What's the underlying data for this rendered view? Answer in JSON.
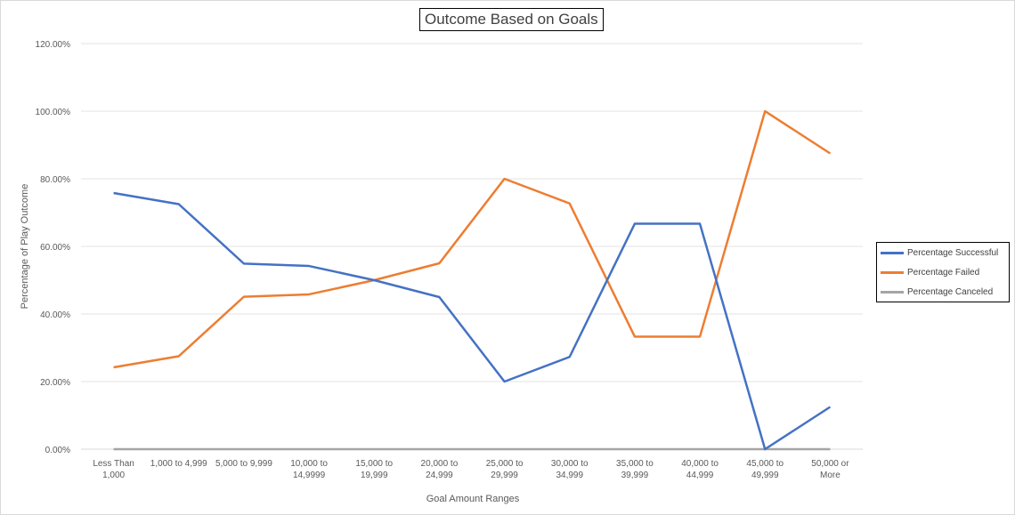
{
  "chart_data": {
    "type": "line",
    "title": "Outcome Based on Goals",
    "xlabel": "Goal Amount Ranges",
    "ylabel": "Percentage of Play Outcome",
    "ylim": [
      0,
      1.2
    ],
    "yticks": [
      "0.00%",
      "20.00%",
      "40.00%",
      "60.00%",
      "80.00%",
      "100.00%",
      "120.00%"
    ],
    "grid": true,
    "legend_position": "right",
    "categories": [
      [
        "Less Than",
        "1,000"
      ],
      [
        "1,000 to 4,999"
      ],
      [
        "5,000 to 9,999"
      ],
      [
        "10,000 to",
        "14,9999"
      ],
      [
        "15,000 to",
        "19,999"
      ],
      [
        "20,000 to",
        "24,999"
      ],
      [
        "25,000 to",
        "29,999"
      ],
      [
        "30,000 to",
        "34,999"
      ],
      [
        "35,000 to",
        "39,999"
      ],
      [
        "40,000 to",
        "44,999"
      ],
      [
        "45,000 to",
        "49,999"
      ],
      [
        "50,000 or",
        "More"
      ]
    ],
    "series": [
      {
        "name": "Percentage Successful",
        "color": "#4472c4",
        "values": [
          0.758,
          0.725,
          0.549,
          0.542,
          0.5,
          0.45,
          0.2,
          0.273,
          0.667,
          0.667,
          0.0,
          0.125
        ]
      },
      {
        "name": "Percentage Failed",
        "color": "#ed7d31",
        "values": [
          0.242,
          0.275,
          0.451,
          0.458,
          0.5,
          0.55,
          0.8,
          0.727,
          0.333,
          0.333,
          1.0,
          0.875
        ]
      },
      {
        "name": "Percentage Canceled",
        "color": "#a5a5a5",
        "values": [
          0,
          0,
          0,
          0,
          0,
          0,
          0,
          0,
          0,
          0,
          0,
          0
        ]
      }
    ]
  }
}
